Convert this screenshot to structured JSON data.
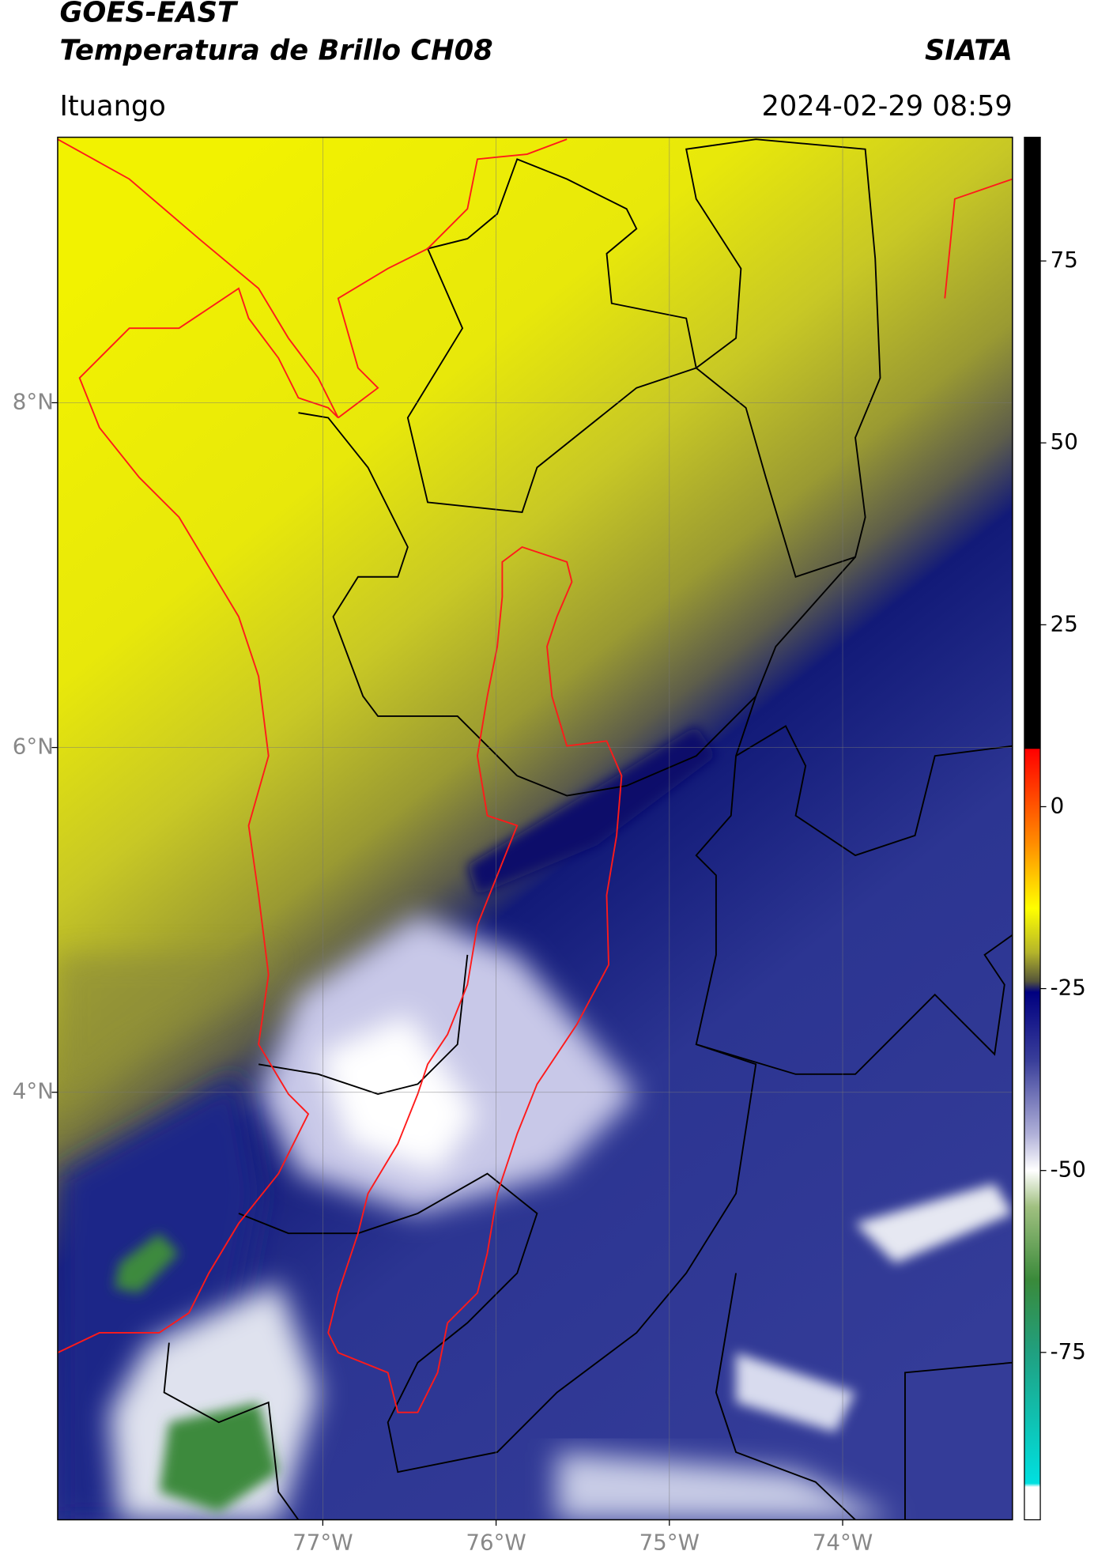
{
  "header": {
    "title": "GOES-EAST",
    "subtitle": "Temperatura de Brillo CH08",
    "source": "SIATA",
    "location": "Ituango",
    "timestamp": "2024-02-29 08:59"
  },
  "map": {
    "latlim": [
      1.52,
      9.54
    ],
    "lonlim": [
      -78.53,
      -73.02
    ],
    "lat_ticks": [
      {
        "value": 4,
        "label": "4°N"
      },
      {
        "value": 6,
        "label": "6°N"
      },
      {
        "value": 8,
        "label": "8°N"
      }
    ],
    "lon_ticks": [
      {
        "value": -77,
        "label": "77°W"
      },
      {
        "value": -76,
        "label": "76°W"
      },
      {
        "value": -75,
        "label": "75°W"
      },
      {
        "value": -74,
        "label": "74°W"
      }
    ],
    "grid": true
  },
  "colorbar": {
    "clim": [
      -98,
      92
    ],
    "ticks": [
      75,
      50,
      25,
      0,
      -25,
      -50,
      -75
    ],
    "stops": [
      {
        "value": 92,
        "color": "#000000"
      },
      {
        "value": 8,
        "color": "#000000"
      },
      {
        "value": 7.9,
        "color": "#ff0000"
      },
      {
        "value": -5,
        "color": "#ff8c00"
      },
      {
        "value": -14,
        "color": "#ffff00"
      },
      {
        "value": -20,
        "color": "#b5b52a"
      },
      {
        "value": -24,
        "color": "#55553a"
      },
      {
        "value": -25.5,
        "color": "#000080"
      },
      {
        "value": -35,
        "color": "#3a3f9a"
      },
      {
        "value": -45,
        "color": "#b0b0d8"
      },
      {
        "value": -50,
        "color": "#ffffff"
      },
      {
        "value": -55,
        "color": "#a0c080"
      },
      {
        "value": -65,
        "color": "#3a8a3a"
      },
      {
        "value": -75,
        "color": "#20a080"
      },
      {
        "value": -93,
        "color": "#00e0e0"
      },
      {
        "value": -93.5,
        "color": "#ffffff"
      },
      {
        "value": -98,
        "color": "#ffffff"
      }
    ]
  }
}
